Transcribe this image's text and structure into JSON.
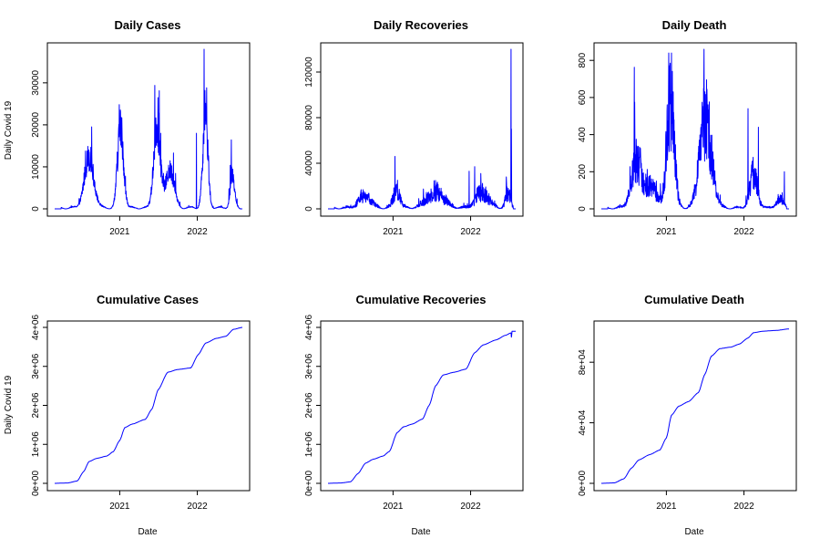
{
  "figure": {
    "background": "#ffffff",
    "series_color": "#0000ff",
    "ylabel": "Daily Covid 19",
    "xlabel": "Date"
  },
  "chart_data": [
    {
      "id": "daily-cases",
      "type": "line",
      "title": "Daily Cases",
      "ylabel": "Daily Covid 19",
      "xlabel": "",
      "x_ticks": [
        "2021",
        "2022"
      ],
      "y_ticks": [
        "0",
        "10000",
        "20000",
        "30000"
      ],
      "xlim": [
        "2020-03-01",
        "2022-08-01"
      ],
      "ylim": [
        0,
        38000
      ],
      "kind": "daily",
      "waves": [
        {
          "center": "2020-08-10",
          "width_days": 22,
          "height": 12000
        },
        {
          "center": "2021-01-05",
          "width_days": 14,
          "height": 19000
        },
        {
          "center": "2021-06-25",
          "width_days": 15,
          "height": 20000
        },
        {
          "center": "2021-08-25",
          "width_days": 20,
          "height": 9000
        },
        {
          "center": "2022-02-08",
          "width_days": 12,
          "height": 22000
        },
        {
          "center": "2022-06-15",
          "width_days": 10,
          "height": 8000
        }
      ],
      "spikes": [
        {
          "date": "2021-06-30",
          "value": 26500
        },
        {
          "date": "2021-12-28",
          "value": 18000
        },
        {
          "date": "2022-02-02",
          "value": 38000
        },
        {
          "date": "2022-06-12",
          "value": 10000
        }
      ],
      "noise_frac": 0.28
    },
    {
      "id": "daily-recoveries",
      "type": "line",
      "title": "Daily Recoveries",
      "ylabel": "",
      "xlabel": "",
      "x_ticks": [
        "2021",
        "2022"
      ],
      "y_ticks": [
        "0",
        "40000",
        "80000",
        "120000"
      ],
      "xlim": [
        "2020-03-01",
        "2022-08-01"
      ],
      "ylim": [
        0,
        140000
      ],
      "kind": "daily",
      "waves": [
        {
          "center": "2020-08-20",
          "width_days": 28,
          "height": 11000
        },
        {
          "center": "2021-01-18",
          "width_days": 16,
          "height": 15000
        },
        {
          "center": "2021-07-20",
          "width_days": 40,
          "height": 14000
        },
        {
          "center": "2022-02-25",
          "width_days": 30,
          "height": 14000
        },
        {
          "center": "2022-06-25",
          "width_days": 12,
          "height": 12000
        }
      ],
      "spikes": [
        {
          "date": "2021-01-10",
          "value": 46000
        },
        {
          "date": "2021-12-25",
          "value": 33000
        },
        {
          "date": "2022-01-20",
          "value": 37000
        },
        {
          "date": "2022-06-18",
          "value": 28000
        },
        {
          "date": "2022-07-10",
          "value": 140000
        },
        {
          "date": "2022-07-12",
          "value": 70000
        }
      ],
      "noise_frac": 0.6
    },
    {
      "id": "daily-death",
      "type": "line",
      "title": "Daily Death",
      "ylabel": "",
      "xlabel": "",
      "x_ticks": [
        "2021",
        "2022"
      ],
      "y_ticks": [
        "0",
        "200",
        "400",
        "600",
        "800"
      ],
      "xlim": [
        "2020-03-01",
        "2022-08-01"
      ],
      "ylim": [
        0,
        860
      ],
      "kind": "daily",
      "waves": [
        {
          "center": "2020-08-15",
          "width_days": 25,
          "height": 260
        },
        {
          "center": "2020-10-25",
          "width_days": 25,
          "height": 110
        },
        {
          "center": "2021-01-20",
          "width_days": 18,
          "height": 560
        },
        {
          "center": "2021-07-05",
          "width_days": 28,
          "height": 470
        },
        {
          "center": "2022-02-15",
          "width_days": 18,
          "height": 180
        },
        {
          "center": "2022-06-20",
          "width_days": 20,
          "height": 40
        }
      ],
      "spikes": [
        {
          "date": "2020-08-05",
          "value": 575
        },
        {
          "date": "2021-01-12",
          "value": 840
        },
        {
          "date": "2021-01-25",
          "value": 840
        },
        {
          "date": "2021-07-01",
          "value": 630
        },
        {
          "date": "2022-01-20",
          "value": 540
        },
        {
          "date": "2022-03-10",
          "value": 440
        },
        {
          "date": "2022-07-10",
          "value": 200
        }
      ],
      "noise_frac": 0.5
    },
    {
      "id": "cumulative-cases",
      "type": "line",
      "title": "Cumulative Cases",
      "ylabel": "Daily Covid 19",
      "xlabel": "Date",
      "x_ticks": [
        "2021",
        "2022"
      ],
      "y_ticks": [
        "0e+00",
        "1e+06",
        "2e+06",
        "3e+06",
        "4e+06"
      ],
      "xlim": [
        "2020-03-01",
        "2022-08-01"
      ],
      "ylim": [
        0,
        4000000
      ],
      "kind": "cumulative",
      "points": [
        [
          "2020-03-01",
          0
        ],
        [
          "2020-05-01",
          10000
        ],
        [
          "2020-06-15",
          60000
        ],
        [
          "2020-07-15",
          300000
        ],
        [
          "2020-08-10",
          560000
        ],
        [
          "2020-09-15",
          640000
        ],
        [
          "2020-11-01",
          700000
        ],
        [
          "2020-12-01",
          810000
        ],
        [
          "2021-01-01",
          1100000
        ],
        [
          "2021-01-25",
          1430000
        ],
        [
          "2021-03-01",
          1520000
        ],
        [
          "2021-05-01",
          1640000
        ],
        [
          "2021-06-01",
          1900000
        ],
        [
          "2021-07-01",
          2400000
        ],
        [
          "2021-08-15",
          2850000
        ],
        [
          "2021-10-01",
          2920000
        ],
        [
          "2021-12-01",
          2960000
        ],
        [
          "2022-01-05",
          3300000
        ],
        [
          "2022-02-10",
          3600000
        ],
        [
          "2022-04-01",
          3720000
        ],
        [
          "2022-05-15",
          3770000
        ],
        [
          "2022-06-20",
          3950000
        ],
        [
          "2022-08-01",
          4000000
        ]
      ]
    },
    {
      "id": "cumulative-recoveries",
      "type": "line",
      "title": "Cumulative Recoveries",
      "ylabel": "",
      "xlabel": "Date",
      "x_ticks": [
        "2021",
        "2022"
      ],
      "y_ticks": [
        "0e+00",
        "1e+06",
        "2e+06",
        "3e+06",
        "4e+06"
      ],
      "xlim": [
        "2020-03-01",
        "2022-08-01"
      ],
      "ylim": [
        0,
        4000000
      ],
      "kind": "cumulative",
      "points": [
        [
          "2020-03-01",
          0
        ],
        [
          "2020-05-01",
          10000
        ],
        [
          "2020-06-15",
          40000
        ],
        [
          "2020-07-20",
          250000
        ],
        [
          "2020-08-25",
          520000
        ],
        [
          "2020-10-01",
          620000
        ],
        [
          "2020-11-15",
          700000
        ],
        [
          "2020-12-15",
          820000
        ],
        [
          "2021-01-20",
          1300000
        ],
        [
          "2021-02-20",
          1450000
        ],
        [
          "2021-04-01",
          1520000
        ],
        [
          "2021-05-20",
          1650000
        ],
        [
          "2021-06-20",
          2000000
        ],
        [
          "2021-07-20",
          2500000
        ],
        [
          "2021-08-25",
          2780000
        ],
        [
          "2021-10-15",
          2850000
        ],
        [
          "2021-12-10",
          2930000
        ],
        [
          "2022-01-20",
          3350000
        ],
        [
          "2022-03-01",
          3550000
        ],
        [
          "2022-05-01",
          3680000
        ],
        [
          "2022-06-15",
          3800000
        ],
        [
          "2022-07-10",
          3860000
        ],
        [
          "2022-07-12",
          3750000
        ],
        [
          "2022-07-15",
          3900000
        ],
        [
          "2022-08-01",
          3900000
        ]
      ]
    },
    {
      "id": "cumulative-death",
      "type": "line",
      "title": "Cumulative Death",
      "ylabel": "",
      "xlabel": "Date",
      "x_ticks": [
        "2021",
        "2022"
      ],
      "y_ticks": [
        "0e+00",
        "4e+04",
        "8e+04"
      ],
      "xlim": [
        "2020-03-01",
        "2022-08-01"
      ],
      "ylim": [
        0,
        103000
      ],
      "kind": "cumulative",
      "points": [
        [
          "2020-03-01",
          0
        ],
        [
          "2020-05-01",
          300
        ],
        [
          "2020-06-15",
          3000
        ],
        [
          "2020-07-20",
          10000
        ],
        [
          "2020-08-25",
          15500
        ],
        [
          "2020-10-15",
          19000
        ],
        [
          "2020-12-01",
          22000
        ],
        [
          "2021-01-01",
          30000
        ],
        [
          "2021-01-25",
          45000
        ],
        [
          "2021-03-01",
          51000
        ],
        [
          "2021-04-15",
          54000
        ],
        [
          "2021-06-01",
          60000
        ],
        [
          "2021-07-01",
          72000
        ],
        [
          "2021-08-01",
          84000
        ],
        [
          "2021-09-10",
          89000
        ],
        [
          "2021-11-01",
          90000
        ],
        [
          "2021-12-10",
          92000
        ],
        [
          "2022-01-20",
          96000
        ],
        [
          "2022-02-15",
          99500
        ],
        [
          "2022-04-01",
          100500
        ],
        [
          "2022-06-01",
          101000
        ],
        [
          "2022-08-01",
          102000
        ]
      ]
    }
  ]
}
